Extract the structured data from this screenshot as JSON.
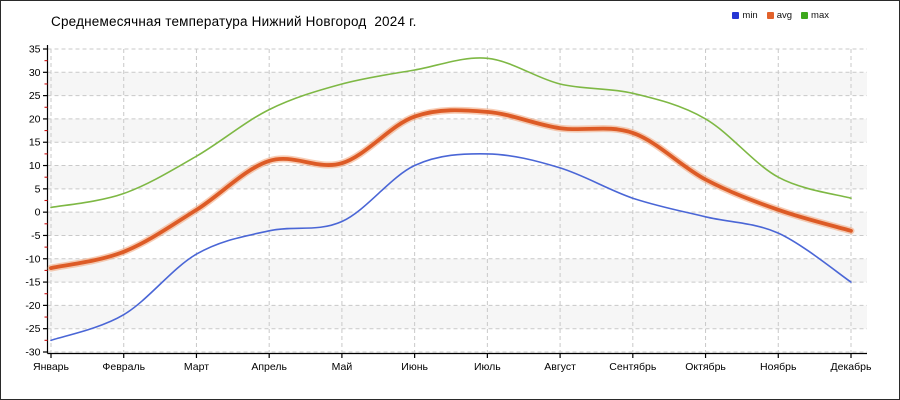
{
  "title": "Среднемесячная температура Нижний Новгород  2024 г.",
  "legend": [
    {
      "id": "min",
      "label": "min",
      "color": "#2636d4"
    },
    {
      "id": "avg",
      "label": "avg",
      "color": "#e2622b"
    },
    {
      "id": "max",
      "label": "max",
      "color": "#3da81c"
    }
  ],
  "chart_data": {
    "type": "line",
    "title": "Среднемесячная температура Нижний Новгород  2024 г.",
    "categories": [
      "Январь",
      "Февраль",
      "Март",
      "Апрель",
      "Май",
      "Июнь",
      "Июль",
      "Август",
      "Сентябрь",
      "Октябрь",
      "Ноябрь",
      "Декабрь"
    ],
    "series": [
      {
        "name": "min",
        "line_color": "#4a66d6",
        "width": 1.6,
        "values": [
          -27.5,
          -22,
          -9,
          -4,
          -2,
          10,
          12.5,
          9.5,
          3,
          -1,
          -4.5,
          -15
        ]
      },
      {
        "name": "avg",
        "line_color": "#dd5b26",
        "halo_color": "#f09a6a",
        "width": 3.8,
        "values": [
          -12,
          -8.5,
          0.5,
          11,
          10.5,
          20.5,
          21.5,
          18,
          17,
          7,
          0.5,
          -4
        ]
      },
      {
        "name": "max",
        "line_color": "#7eb844",
        "width": 1.6,
        "values": [
          1,
          4,
          12,
          22,
          27.5,
          30.5,
          33,
          27.5,
          25.5,
          20,
          7.5,
          3
        ]
      }
    ],
    "xlabel": "",
    "ylabel": "",
    "ylim": [
      -30,
      35
    ],
    "ytick_step": 5,
    "grid": true,
    "grid_style": "dashed",
    "zebra_bands": true,
    "legend_position": "top-right",
    "colors": {
      "gridline": "#c9c9c9",
      "band": "#f6f6f6",
      "axis": "#000000",
      "minor_tick": "#cc1111",
      "text": "#000000"
    }
  }
}
